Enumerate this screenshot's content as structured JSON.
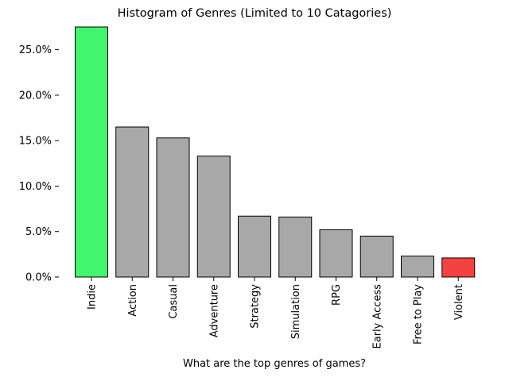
{
  "chart_data": {
    "type": "bar",
    "title": "Histogram of Genres (Limited to 10 Catagories)",
    "xlabel": "What are the top genres of games?",
    "ylabel": "",
    "ylim": [
      0,
      27.5
    ],
    "yticks": [
      0,
      5,
      10,
      15,
      20,
      25
    ],
    "ytick_labels": [
      "0.0%",
      "5.0%",
      "10.0%",
      "15.0%",
      "20.0%",
      "25.0%"
    ],
    "categories": [
      "Indie",
      "Action",
      "Casual",
      "Adventure",
      "Strategy",
      "Simulation",
      "RPG",
      "Early Access",
      "Free to Play",
      "Violent"
    ],
    "values": [
      27.5,
      16.5,
      15.3,
      13.3,
      6.7,
      6.6,
      5.2,
      4.5,
      2.3,
      2.1
    ],
    "colors": [
      "#42f46e",
      "#a8a8a8",
      "#a8a8a8",
      "#a8a8a8",
      "#a8a8a8",
      "#a8a8a8",
      "#a8a8a8",
      "#a8a8a8",
      "#a8a8a8",
      "#f44242"
    ],
    "grid": false,
    "legend": "none"
  }
}
